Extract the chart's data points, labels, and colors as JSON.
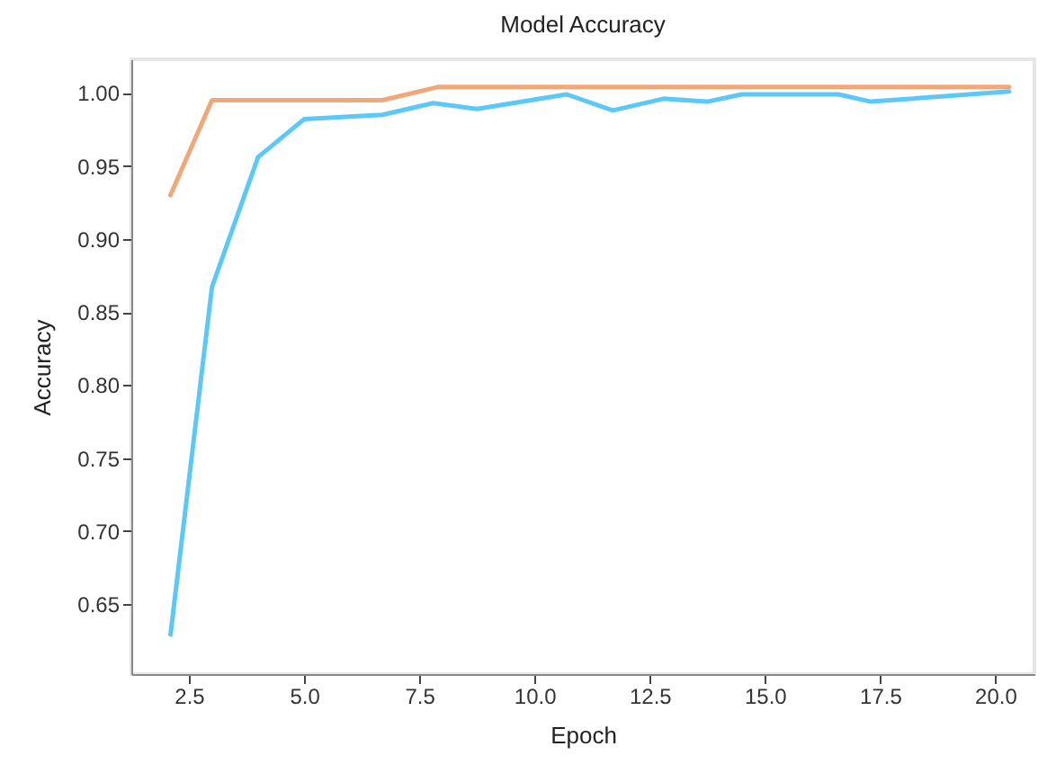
{
  "chart_data": {
    "type": "line",
    "title": "Model Accuracy",
    "xlabel": "Epoch",
    "ylabel": "Accuracy",
    "xlim": [
      1.25,
      20.85
    ],
    "ylim": [
      0.602,
      1.023
    ],
    "xticks": [
      {
        "value": 2.5,
        "label": "2.5"
      },
      {
        "value": 5,
        "label": "5.0"
      },
      {
        "value": 7.5,
        "label": "7.5"
      },
      {
        "value": 10,
        "label": "10.0"
      },
      {
        "value": 12.5,
        "label": "12.5"
      },
      {
        "value": 15,
        "label": "15.0"
      },
      {
        "value": 17.5,
        "label": "17.5"
      },
      {
        "value": 20,
        "label": "20.0"
      }
    ],
    "yticks": [
      {
        "value": 0.65,
        "label": "0.65"
      },
      {
        "value": 0.7,
        "label": "0.70"
      },
      {
        "value": 0.75,
        "label": "0.75"
      },
      {
        "value": 0.8,
        "label": "0.80"
      },
      {
        "value": 0.85,
        "label": "0.85"
      },
      {
        "value": 0.9,
        "label": "0.90"
      },
      {
        "value": 0.95,
        "label": "0.95"
      },
      {
        "value": 1,
        "label": "1.00"
      }
    ],
    "grid": false,
    "legend": false,
    "marker": "none",
    "line_style": "solid",
    "series": [
      {
        "color": "#5bc8f5",
        "x": [
          2.1,
          3.0,
          4.0,
          5.0,
          6.7,
          7.8,
          8.75,
          10.7,
          11.7,
          12.8,
          13.75,
          14.5,
          16.6,
          17.3,
          20.3
        ],
        "values": [
          0.629,
          0.867,
          0.956,
          0.982,
          0.985,
          0.993,
          0.989,
          0.999,
          0.988,
          0.996,
          0.994,
          0.999,
          0.999,
          0.994,
          1.001
        ]
      },
      {
        "color": "#f0a878",
        "x": [
          2.1,
          3.0,
          6.7,
          7.9,
          20.3
        ],
        "values": [
          0.93,
          0.995,
          0.995,
          1.004,
          1.004
        ]
      }
    ]
  }
}
